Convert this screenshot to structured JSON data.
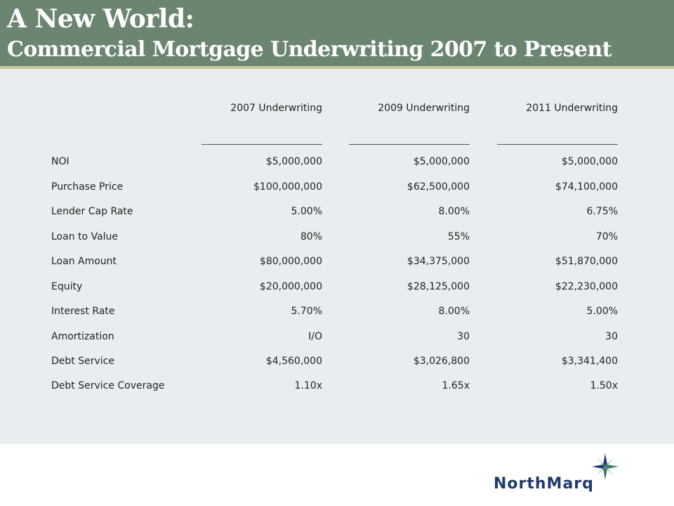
{
  "header": {
    "title_line1": "A New World:",
    "title_line2": "Commercial Mortgage Underwriting 2007 to Present"
  },
  "table": {
    "columns": [
      "2007 Underwriting",
      "2009 Underwriting",
      "2011 Underwriting"
    ],
    "rows": [
      {
        "label": "NOI",
        "values": [
          "$5,000,000",
          "$5,000,000",
          "$5,000,000"
        ]
      },
      {
        "label": "Purchase Price",
        "values": [
          "$100,000,000",
          "$62,500,000",
          "$74,100,000"
        ]
      },
      {
        "label": "Lender Cap Rate",
        "values": [
          "5.00%",
          "8.00%",
          "6.75%"
        ]
      },
      {
        "label": "Loan to Value",
        "values": [
          "80%",
          "55%",
          "70%"
        ]
      },
      {
        "label": "Loan Amount",
        "values": [
          "$80,000,000",
          "$34,375,000",
          "$51,870,000"
        ]
      },
      {
        "label": "Equity",
        "values": [
          "$20,000,000",
          "$28,125,000",
          "$22,230,000"
        ]
      },
      {
        "label": "Interest Rate",
        "values": [
          "5.70%",
          "8.00%",
          "5.00%"
        ]
      },
      {
        "label": "Amortization",
        "values": [
          "I/O",
          "30",
          "30"
        ]
      },
      {
        "label": "Debt Service",
        "values": [
          "$4,560,000",
          "$3,026,800",
          "$3,341,400"
        ]
      },
      {
        "label": "Debt Service Coverage",
        "values": [
          "1.10x",
          "1.65x",
          "1.50x"
        ]
      }
    ]
  },
  "logo": {
    "icon": "compass-star-icon",
    "text": "NorthMarq"
  },
  "colors": {
    "header_bg": "#6c8570",
    "header_rule": "#c9c99a",
    "panel_bg": "#e8eef0",
    "logo_blue": "#1f3a6e",
    "logo_star_green": "#3a7a6a"
  }
}
